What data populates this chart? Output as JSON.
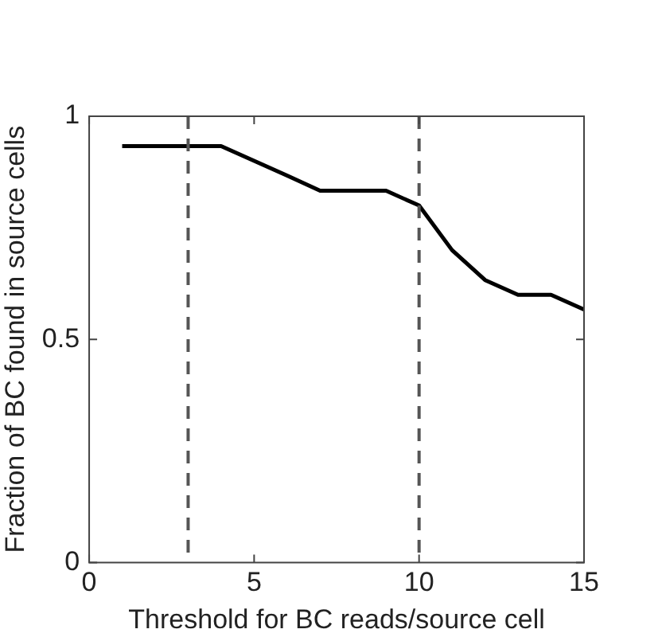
{
  "chart_data": {
    "type": "line",
    "xlabel": "Threshold for BC reads/source cell",
    "ylabel": "Fraction of BC found in source cells",
    "x": [
      1,
      2,
      3,
      4,
      5,
      6,
      7,
      8,
      9,
      10,
      11,
      12,
      13,
      14,
      15
    ],
    "series": [
      {
        "color": "#000000",
        "values": [
          0.933,
          0.933,
          0.933,
          0.933,
          0.9,
          0.867,
          0.833,
          0.833,
          0.833,
          0.8,
          0.7,
          0.633,
          0.6,
          0.6,
          0.567
        ]
      }
    ],
    "xlim": [
      0,
      15
    ],
    "xticks": [
      0,
      5,
      10,
      15
    ],
    "ylim": [
      0,
      1
    ],
    "yticks": [
      0,
      0.5,
      1
    ],
    "ref_lines": [
      {
        "axis": "x",
        "value": 3,
        "color": "#555555",
        "line_style": "dashed"
      },
      {
        "axis": "x",
        "value": 10,
        "color": "#555555",
        "line_style": "dashed"
      }
    ],
    "grid": false,
    "legend": false,
    "marker": "none",
    "line_style": "solid"
  }
}
